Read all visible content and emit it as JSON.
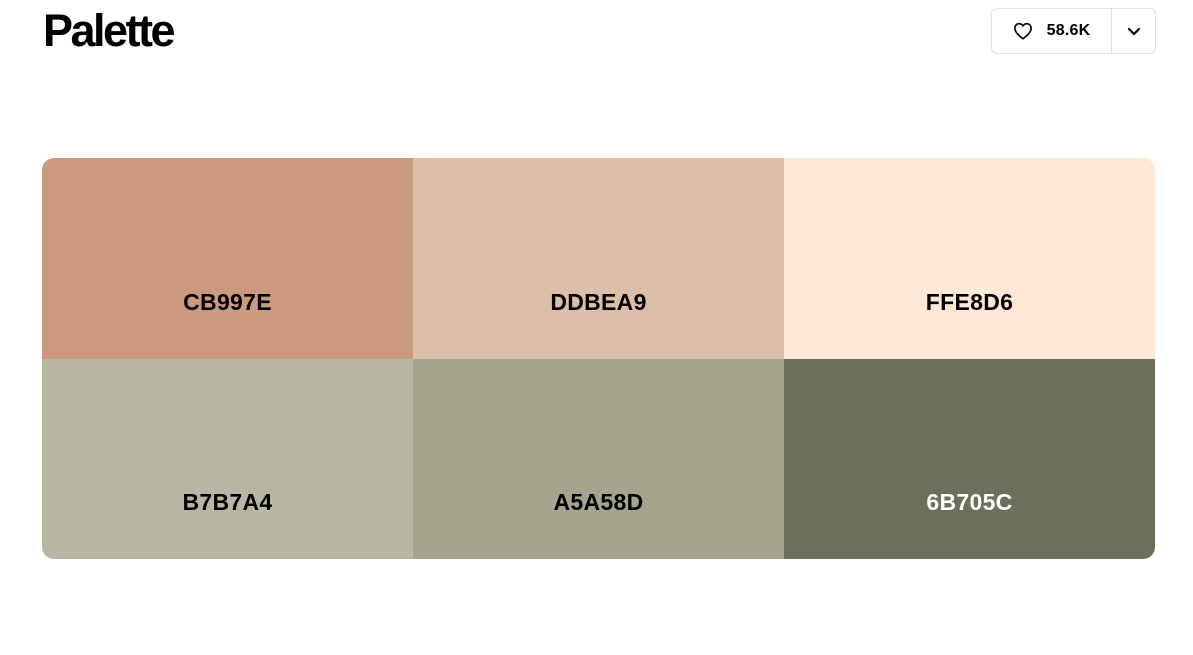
{
  "header": {
    "title": "Palette"
  },
  "likes": {
    "count": "58.6K",
    "icon": "heart-icon",
    "dropdown_icon": "chevron-down-icon"
  },
  "palette": {
    "colors": [
      {
        "hex": "CB997E",
        "color": "#CB997E",
        "text_color": "#000000"
      },
      {
        "hex": "DDBEA9",
        "color": "#DDBEA9",
        "text_color": "#000000"
      },
      {
        "hex": "FFE8D6",
        "color": "#FFE8D6",
        "text_color": "#000000"
      },
      {
        "hex": "B7B7A4",
        "color": "#B7B7A4",
        "text_color": "#000000"
      },
      {
        "hex": "A5A58D",
        "color": "#A5A58D",
        "text_color": "#000000"
      },
      {
        "hex": "6B705C",
        "color": "#6B705C",
        "text_color": "#FFFFFF"
      }
    ]
  }
}
